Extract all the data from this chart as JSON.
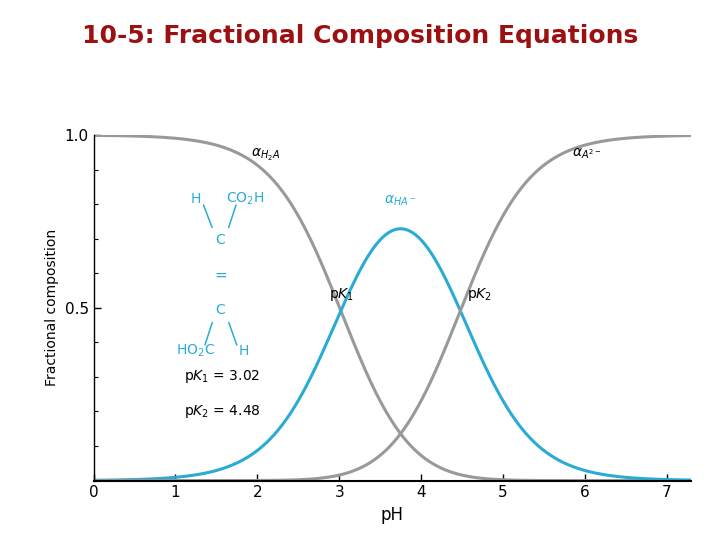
{
  "title": "10-5: Fractional Composition Equations",
  "title_color": "#9B1010",
  "title_fontsize": 18,
  "title_bold": true,
  "divider_color": "#29ABD4",
  "divider_linewidth": 6,
  "xlabel": "pH",
  "ylabel": "Fractional composition",
  "pK1": 3.02,
  "pK2": 4.48,
  "xmin": 0,
  "xmax": 7.3,
  "ymin": 0,
  "ymax": 1.0,
  "yticks": [
    0.5,
    1.0
  ],
  "xticks": [
    0,
    1,
    2,
    3,
    4,
    5,
    6,
    7
  ],
  "gray_color": "#999999",
  "cyan_color": "#29ABD4",
  "linewidth": 2.2
}
